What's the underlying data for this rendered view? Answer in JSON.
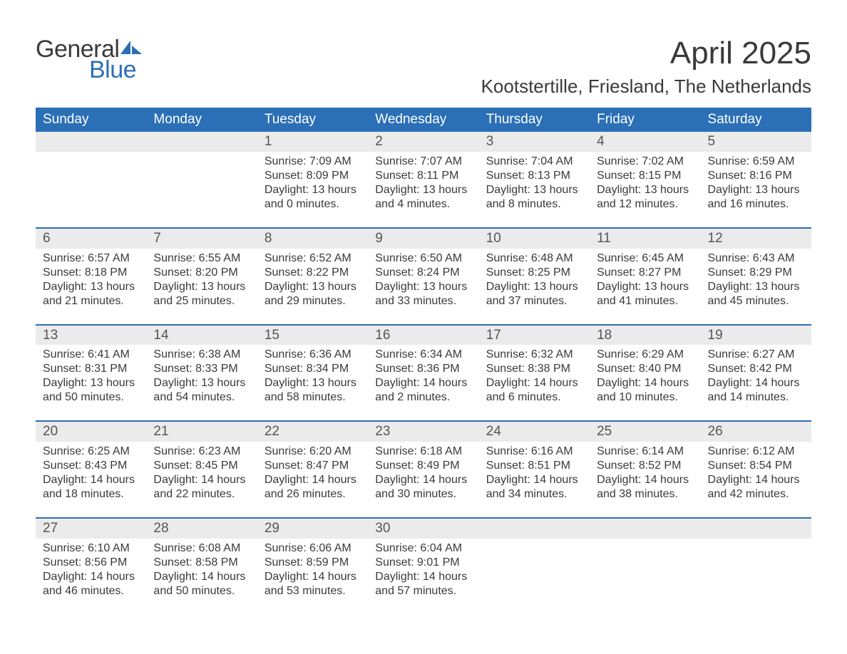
{
  "brand": {
    "part1": "General",
    "part2": "Blue"
  },
  "title": "April 2025",
  "location": "Kootstertille, Friesland, The Netherlands",
  "colors": {
    "header_bg": "#2b6fb6",
    "header_text": "#ffffff",
    "daynum_bg": "#ebebeb",
    "week_divider": "#2b6fb6",
    "body_text": "#3a3a3a",
    "brand_blue": "#2b6fb6"
  },
  "typography": {
    "title_fontsize": 44,
    "location_fontsize": 26,
    "weekday_fontsize": 19,
    "daynum_fontsize": 19,
    "body_fontsize": 16
  },
  "weekdays": [
    "Sunday",
    "Monday",
    "Tuesday",
    "Wednesday",
    "Thursday",
    "Friday",
    "Saturday"
  ],
  "labels": {
    "sunrise": "Sunrise:",
    "sunset": "Sunset:",
    "daylight": "Daylight:"
  },
  "weeks": [
    [
      null,
      null,
      {
        "n": "1",
        "sr": "7:09 AM",
        "ss": "8:09 PM",
        "dl": "13 hours and 0 minutes."
      },
      {
        "n": "2",
        "sr": "7:07 AM",
        "ss": "8:11 PM",
        "dl": "13 hours and 4 minutes."
      },
      {
        "n": "3",
        "sr": "7:04 AM",
        "ss": "8:13 PM",
        "dl": "13 hours and 8 minutes."
      },
      {
        "n": "4",
        "sr": "7:02 AM",
        "ss": "8:15 PM",
        "dl": "13 hours and 12 minutes."
      },
      {
        "n": "5",
        "sr": "6:59 AM",
        "ss": "8:16 PM",
        "dl": "13 hours and 16 minutes."
      }
    ],
    [
      {
        "n": "6",
        "sr": "6:57 AM",
        "ss": "8:18 PM",
        "dl": "13 hours and 21 minutes."
      },
      {
        "n": "7",
        "sr": "6:55 AM",
        "ss": "8:20 PM",
        "dl": "13 hours and 25 minutes."
      },
      {
        "n": "8",
        "sr": "6:52 AM",
        "ss": "8:22 PM",
        "dl": "13 hours and 29 minutes."
      },
      {
        "n": "9",
        "sr": "6:50 AM",
        "ss": "8:24 PM",
        "dl": "13 hours and 33 minutes."
      },
      {
        "n": "10",
        "sr": "6:48 AM",
        "ss": "8:25 PM",
        "dl": "13 hours and 37 minutes."
      },
      {
        "n": "11",
        "sr": "6:45 AM",
        "ss": "8:27 PM",
        "dl": "13 hours and 41 minutes."
      },
      {
        "n": "12",
        "sr": "6:43 AM",
        "ss": "8:29 PM",
        "dl": "13 hours and 45 minutes."
      }
    ],
    [
      {
        "n": "13",
        "sr": "6:41 AM",
        "ss": "8:31 PM",
        "dl": "13 hours and 50 minutes."
      },
      {
        "n": "14",
        "sr": "6:38 AM",
        "ss": "8:33 PM",
        "dl": "13 hours and 54 minutes."
      },
      {
        "n": "15",
        "sr": "6:36 AM",
        "ss": "8:34 PM",
        "dl": "13 hours and 58 minutes."
      },
      {
        "n": "16",
        "sr": "6:34 AM",
        "ss": "8:36 PM",
        "dl": "14 hours and 2 minutes."
      },
      {
        "n": "17",
        "sr": "6:32 AM",
        "ss": "8:38 PM",
        "dl": "14 hours and 6 minutes."
      },
      {
        "n": "18",
        "sr": "6:29 AM",
        "ss": "8:40 PM",
        "dl": "14 hours and 10 minutes."
      },
      {
        "n": "19",
        "sr": "6:27 AM",
        "ss": "8:42 PM",
        "dl": "14 hours and 14 minutes."
      }
    ],
    [
      {
        "n": "20",
        "sr": "6:25 AM",
        "ss": "8:43 PM",
        "dl": "14 hours and 18 minutes."
      },
      {
        "n": "21",
        "sr": "6:23 AM",
        "ss": "8:45 PM",
        "dl": "14 hours and 22 minutes."
      },
      {
        "n": "22",
        "sr": "6:20 AM",
        "ss": "8:47 PM",
        "dl": "14 hours and 26 minutes."
      },
      {
        "n": "23",
        "sr": "6:18 AM",
        "ss": "8:49 PM",
        "dl": "14 hours and 30 minutes."
      },
      {
        "n": "24",
        "sr": "6:16 AM",
        "ss": "8:51 PM",
        "dl": "14 hours and 34 minutes."
      },
      {
        "n": "25",
        "sr": "6:14 AM",
        "ss": "8:52 PM",
        "dl": "14 hours and 38 minutes."
      },
      {
        "n": "26",
        "sr": "6:12 AM",
        "ss": "8:54 PM",
        "dl": "14 hours and 42 minutes."
      }
    ],
    [
      {
        "n": "27",
        "sr": "6:10 AM",
        "ss": "8:56 PM",
        "dl": "14 hours and 46 minutes."
      },
      {
        "n": "28",
        "sr": "6:08 AM",
        "ss": "8:58 PM",
        "dl": "14 hours and 50 minutes."
      },
      {
        "n": "29",
        "sr": "6:06 AM",
        "ss": "8:59 PM",
        "dl": "14 hours and 53 minutes."
      },
      {
        "n": "30",
        "sr": "6:04 AM",
        "ss": "9:01 PM",
        "dl": "14 hours and 57 minutes."
      },
      null,
      null,
      null
    ]
  ]
}
